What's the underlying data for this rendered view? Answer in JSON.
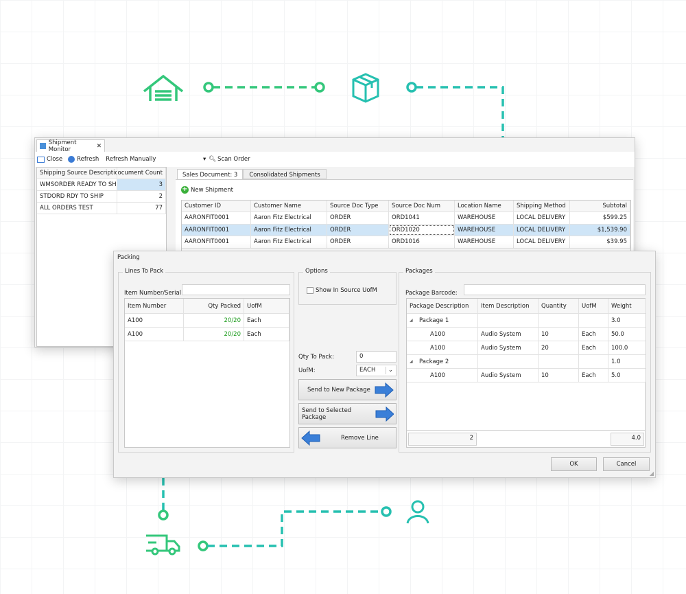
{
  "colors": {
    "accent_green": "#34c77b",
    "accent_teal": "#26c0b0",
    "selection": "#cfe5f7",
    "qty_green": "#1a9a1a"
  },
  "decor_icons": [
    "warehouse-icon",
    "package-box-icon",
    "delivery-truck-icon",
    "user-icon"
  ],
  "monitor": {
    "tab_label": "Shipment Monitor",
    "toolbar": {
      "close": "Close",
      "refresh": "Refresh",
      "refresh_mode": "Refresh Manually",
      "scan_order": "Scan Order"
    },
    "sources": {
      "headers": [
        "Shipping Source Description",
        "Document Count"
      ],
      "rows": [
        [
          "WMSORDER READY TO SHIP",
          "3"
        ],
        [
          "STDORD RDY TO SHIP",
          "2"
        ],
        [
          "ALL ORDERS TEST",
          "77"
        ]
      ]
    },
    "tabs": [
      "Sales Document: 3",
      "Consolidated Shipments"
    ],
    "new_shipment": "New Shipment",
    "documents": {
      "headers": [
        "Customer ID",
        "Customer Name",
        "Source Doc Type",
        "Source Doc Num",
        "Location Name",
        "Shipping Method",
        "Subtotal"
      ],
      "rows": [
        [
          "AARONFIT0001",
          "Aaron Fitz Electrical",
          "ORDER",
          "ORD1041",
          "WAREHOUSE",
          "LOCAL DELIVERY",
          "$599.25"
        ],
        [
          "AARONFIT0001",
          "Aaron Fitz Electrical",
          "ORDER",
          "ORD1020",
          "WAREHOUSE",
          "LOCAL DELIVERY",
          "$1,539.90"
        ],
        [
          "AARONFIT0001",
          "Aaron Fitz Electrical",
          "ORDER",
          "ORD1016",
          "WAREHOUSE",
          "LOCAL DELIVERY",
          "$39.95"
        ]
      ]
    }
  },
  "packing": {
    "title": "Packing",
    "lines": {
      "group": "Lines To Pack",
      "item_label": "Item Number/Serial:",
      "item_value": "",
      "headers": [
        "Item Number",
        "Qty Packed",
        "UofM"
      ],
      "rows": [
        [
          "A100",
          "20/20",
          "Each"
        ],
        [
          "A100",
          "20/20",
          "Each"
        ]
      ]
    },
    "options": {
      "group": "Options",
      "show_source_uofm": "Show In Source UofM",
      "show_source_uofm_checked": false
    },
    "qty_label": "Qty To Pack:",
    "qty_value": "0",
    "uofm_label": "UofM:",
    "uofm_value": "EACH",
    "send_new": "Send to New Package",
    "send_selected": "Send to Selected Package",
    "remove_line": "Remove Line",
    "packages": {
      "group": "Packages",
      "barcode_label": "Package Barcode:",
      "barcode_value": "",
      "headers": [
        "Package Description",
        "Item Description",
        "Quantity",
        "UofM",
        "Weight"
      ],
      "rows": [
        {
          "level": 0,
          "cells": [
            "Package 1",
            "",
            "",
            "",
            "3.0"
          ]
        },
        {
          "level": 1,
          "cells": [
            "A100",
            "Audio System",
            "10",
            "Each",
            "50.0"
          ]
        },
        {
          "level": 1,
          "cells": [
            "A100",
            "Audio System",
            "20",
            "Each",
            "100.0"
          ]
        },
        {
          "level": 0,
          "cells": [
            "Package 2",
            "",
            "",
            "",
            "1.0"
          ]
        },
        {
          "level": 1,
          "cells": [
            "A100",
            "Audio System",
            "10",
            "Each",
            "5.0"
          ]
        }
      ],
      "footer_count": "2",
      "footer_weight": "4.0"
    },
    "ok": "OK",
    "cancel": "Cancel"
  }
}
